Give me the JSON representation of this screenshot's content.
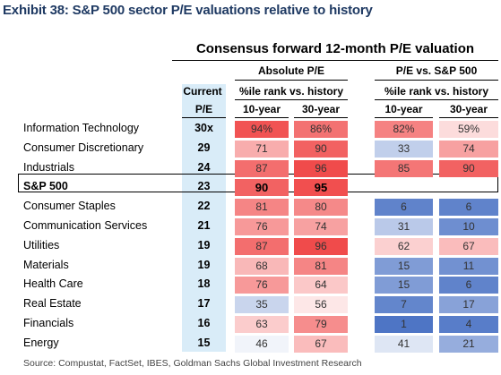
{
  "title": "Exhibit 38: S&P 500 sector P/E valuations relative to history",
  "table_heading": "Consensus forward 12-month P/E valuation",
  "headers": {
    "absolute_pe": "Absolute P/E",
    "pe_vs_sp500": "P/E vs. S&P 500",
    "current": "Current",
    "pe": "P/E",
    "pctile_abs": "%ile rank vs. history",
    "pctile_rel": "%ile rank vs. history",
    "ten_year_abs": "10-year",
    "thirty_year_abs": "30-year",
    "ten_year_rel": "10-year",
    "thirty_year_rel": "30-year"
  },
  "rows": [
    {
      "name": "Information Technology",
      "pe": "30x",
      "abs10": "94%",
      "abs30": "86%",
      "rel10": "82%",
      "rel30": "59%"
    },
    {
      "name": "Consumer Discretionary",
      "pe": "29",
      "abs10": "71",
      "abs30": "90",
      "rel10": "33",
      "rel30": "74"
    },
    {
      "name": "Industrials",
      "pe": "24",
      "abs10": "87",
      "abs30": "96",
      "rel10": "85",
      "rel30": "90"
    },
    {
      "name": "S&P 500",
      "pe": "23",
      "abs10": "90",
      "abs30": "95",
      "rel10": "",
      "rel30": "",
      "highlight": true
    },
    {
      "name": "Consumer Staples",
      "pe": "22",
      "abs10": "81",
      "abs30": "80",
      "rel10": "6",
      "rel30": "6"
    },
    {
      "name": "Communication Services",
      "pe": "21",
      "abs10": "76",
      "abs30": "74",
      "rel10": "31",
      "rel30": "10"
    },
    {
      "name": "Utilities",
      "pe": "19",
      "abs10": "87",
      "abs30": "96",
      "rel10": "62",
      "rel30": "67"
    },
    {
      "name": "Materials",
      "pe": "19",
      "abs10": "68",
      "abs30": "81",
      "rel10": "15",
      "rel30": "11"
    },
    {
      "name": "Health Care",
      "pe": "18",
      "abs10": "76",
      "abs30": "64",
      "rel10": "15",
      "rel30": "6"
    },
    {
      "name": "Real Estate",
      "pe": "17",
      "abs10": "35",
      "abs30": "56",
      "rel10": "7",
      "rel30": "17"
    },
    {
      "name": "Financials",
      "pe": "16",
      "abs10": "63",
      "abs30": "79",
      "rel10": "1",
      "rel30": "4"
    },
    {
      "name": "Energy",
      "pe": "15",
      "abs10": "46",
      "abs30": "67",
      "rel10": "41",
      "rel30": "21"
    }
  ],
  "heat_colors": {
    "high": "#ef3b3b",
    "mid": "#ffffff",
    "low": "#4a72c4"
  },
  "source": "Source: Compustat, FactSet, IBES, Goldman Sachs Global Investment Research"
}
